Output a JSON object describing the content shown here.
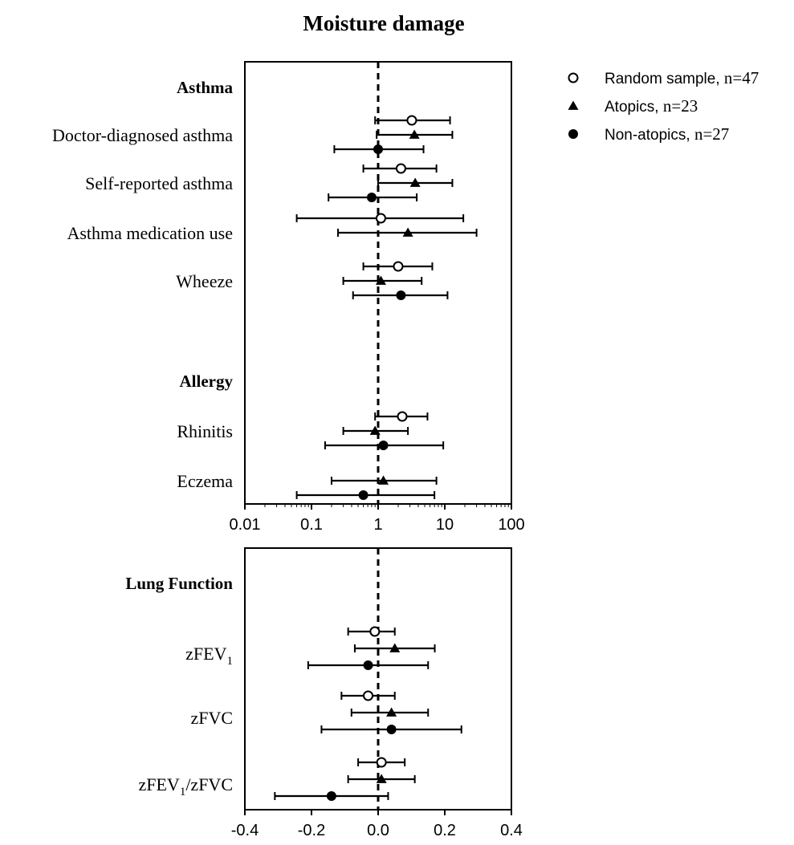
{
  "title": "Moisture damage",
  "legend": {
    "placement": "top-right",
    "items": [
      {
        "series": "Random sample",
        "label": "Random sample,",
        "n_label": "n=47",
        "marker": "open-circle"
      },
      {
        "series": "Atopics",
        "label": "Atopics,",
        "n_label": "n=23",
        "marker": "filled-triangle"
      },
      {
        "series": "Non-atopics",
        "label": "Non-atopics,",
        "n_label": "n=27",
        "marker": "filled-circle"
      }
    ]
  },
  "colors": {
    "marker": "#000000",
    "axis": "#000000",
    "reference_line": "#000000"
  },
  "chart_data": [
    {
      "type": "forest",
      "panel": "top",
      "scale": "log",
      "xlim": [
        0.01,
        100
      ],
      "x_ticks": [
        0.01,
        0.1,
        1,
        10,
        100
      ],
      "x_tick_labels": [
        "0.01",
        "0.1",
        "1",
        "10",
        "100"
      ],
      "reference_value": 1,
      "rows": [
        {
          "kind": "header",
          "label": "Asthma"
        },
        {
          "kind": "outcome",
          "label": "Doctor-diagnosed asthma",
          "estimates": [
            {
              "series": "Random sample",
              "value": 3.2,
              "lo": 0.9,
              "hi": 12
            },
            {
              "series": "Atopics",
              "value": 3.5,
              "lo": 0.95,
              "hi": 13
            },
            {
              "series": "Non-atopics",
              "value": 1.0,
              "lo": 0.22,
              "hi": 4.8
            }
          ]
        },
        {
          "kind": "outcome",
          "label": "Self-reported asthma",
          "estimates": [
            {
              "series": "Random sample",
              "value": 2.2,
              "lo": 0.6,
              "hi": 7.5
            },
            {
              "series": "Atopics",
              "value": 3.6,
              "lo": 1.0,
              "hi": 13
            },
            {
              "series": "Non-atopics",
              "value": 0.8,
              "lo": 0.18,
              "hi": 3.8
            }
          ]
        },
        {
          "kind": "outcome",
          "label": "Asthma medication use",
          "estimates": [
            {
              "series": "Random sample",
              "value": 1.1,
              "lo": 0.06,
              "hi": 19
            },
            {
              "series": "Atopics",
              "value": 2.8,
              "lo": 0.25,
              "hi": 30
            }
          ]
        },
        {
          "kind": "outcome",
          "label": "Wheeze",
          "estimates": [
            {
              "series": "Random sample",
              "value": 2.0,
              "lo": 0.6,
              "hi": 6.5
            },
            {
              "series": "Atopics",
              "value": 1.1,
              "lo": 0.3,
              "hi": 4.5
            },
            {
              "series": "Non-atopics",
              "value": 2.2,
              "lo": 0.42,
              "hi": 11
            }
          ]
        },
        {
          "kind": "spacer"
        },
        {
          "kind": "header",
          "label": "Allergy"
        },
        {
          "kind": "outcome",
          "label": "Rhinitis",
          "estimates": [
            {
              "series": "Random sample",
              "value": 2.3,
              "lo": 0.9,
              "hi": 5.5
            },
            {
              "series": "Atopics",
              "value": 0.9,
              "lo": 0.3,
              "hi": 2.8
            },
            {
              "series": "Non-atopics",
              "value": 1.2,
              "lo": 0.16,
              "hi": 9.5
            }
          ]
        },
        {
          "kind": "outcome",
          "label": "Eczema",
          "estimates": [
            {
              "series": "Atopics",
              "value": 1.2,
              "lo": 0.2,
              "hi": 7.5
            },
            {
              "series": "Non-atopics",
              "value": 0.6,
              "lo": 0.06,
              "hi": 7
            }
          ]
        }
      ]
    },
    {
      "type": "forest",
      "panel": "bottom",
      "scale": "linear",
      "xlim": [
        -0.4,
        0.4
      ],
      "x_ticks": [
        -0.4,
        -0.2,
        0,
        0.2,
        0.4
      ],
      "x_tick_labels": [
        "-0.4",
        "-0.2",
        "0.0",
        "0.2",
        "0.4"
      ],
      "reference_value": 0,
      "rows": [
        {
          "kind": "header",
          "label": "Lung Function"
        },
        {
          "kind": "outcome",
          "label": "zFEV",
          "label_sub": "1",
          "label_rest": "",
          "estimates": [
            {
              "series": "Random sample",
              "value": -0.01,
              "lo": -0.09,
              "hi": 0.05
            },
            {
              "series": "Atopics",
              "value": 0.05,
              "lo": -0.07,
              "hi": 0.17
            },
            {
              "series": "Non-atopics",
              "value": -0.03,
              "lo": -0.21,
              "hi": 0.15
            }
          ]
        },
        {
          "kind": "outcome",
          "label": "zFVC",
          "label_sub": "",
          "label_rest": "",
          "estimates": [
            {
              "series": "Random sample",
              "value": -0.03,
              "lo": -0.11,
              "hi": 0.05
            },
            {
              "series": "Atopics",
              "value": 0.04,
              "lo": -0.08,
              "hi": 0.15
            },
            {
              "series": "Non-atopics",
              "value": 0.04,
              "lo": -0.17,
              "hi": 0.25
            }
          ]
        },
        {
          "kind": "outcome",
          "label": "zFEV",
          "label_sub": "1",
          "label_rest": "/zFVC",
          "estimates": [
            {
              "series": "Random sample",
              "value": 0.01,
              "lo": -0.06,
              "hi": 0.08
            },
            {
              "series": "Atopics",
              "value": 0.01,
              "lo": -0.09,
              "hi": 0.11
            },
            {
              "series": "Non-atopics",
              "value": -0.14,
              "lo": -0.31,
              "hi": 0.03
            }
          ]
        }
      ]
    }
  ]
}
